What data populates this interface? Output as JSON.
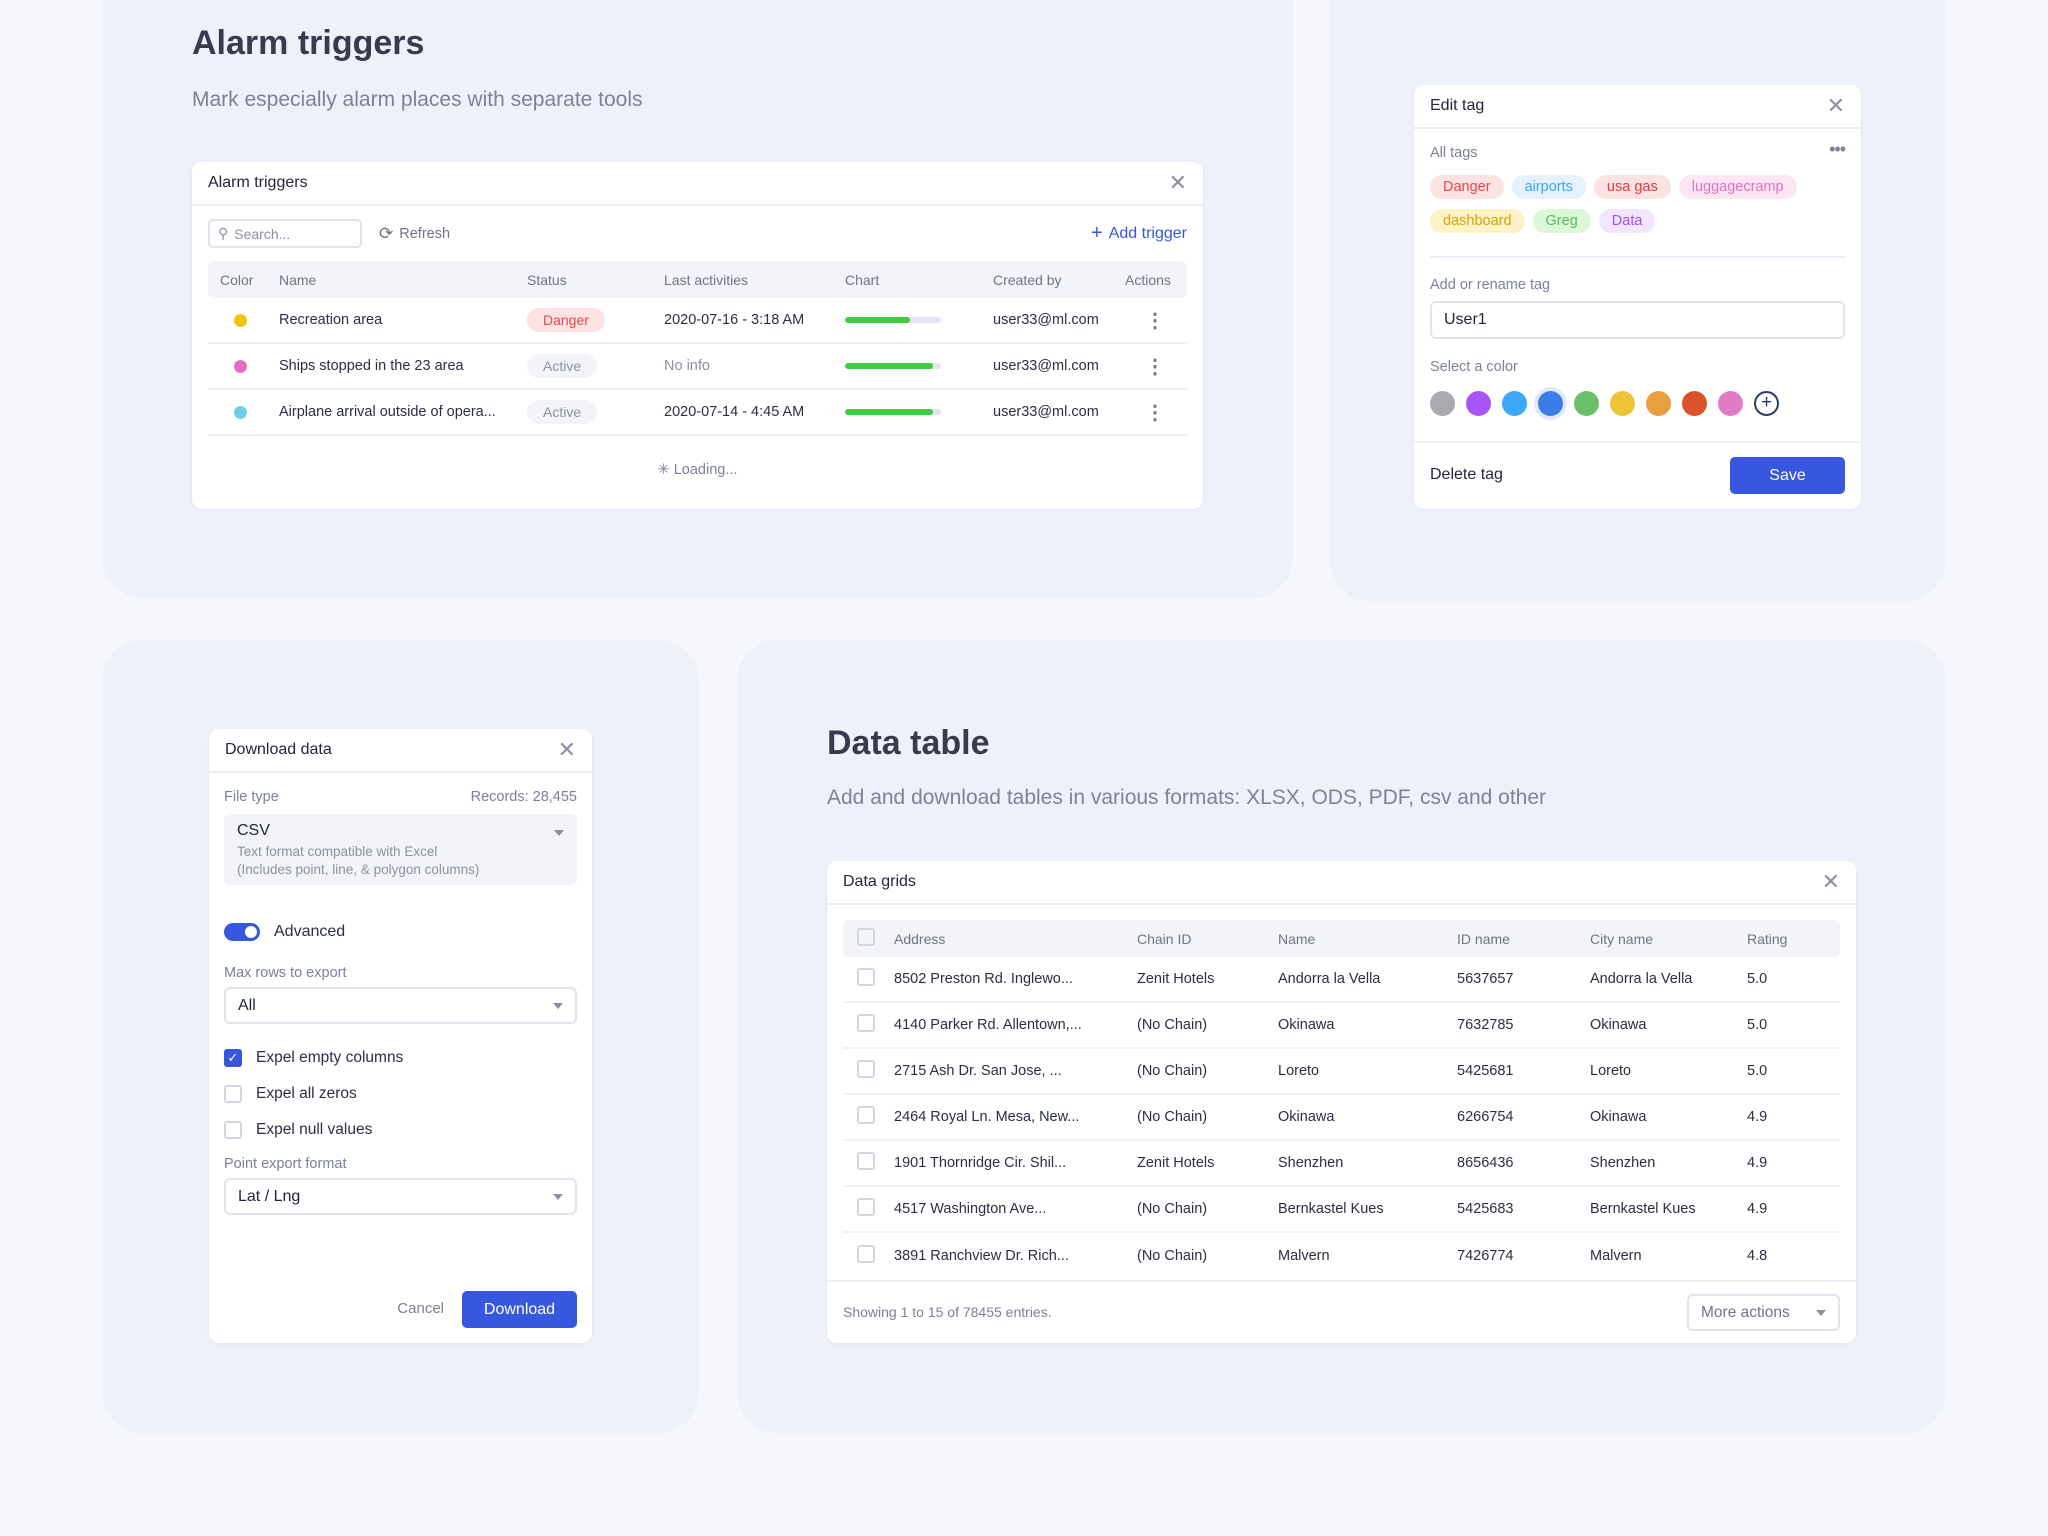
{
  "alarm_section": {
    "title": "Alarm triggers",
    "subtitle": "Mark especially alarm places with separate tools",
    "card": {
      "title": "Alarm triggers",
      "search_placeholder": "Search...",
      "refresh_label": "Refresh",
      "add_label": "Add trigger",
      "columns": [
        "Color",
        "Name",
        "Status",
        "Last activities",
        "Chart",
        "Created by",
        "Actions"
      ],
      "rows": [
        {
          "color": "#f2c40f",
          "name": "Recreation area",
          "status": "Danger",
          "last": "2020-07-16 - 3:18 AM",
          "progress": 0.68,
          "created_by": "user33@ml.com"
        },
        {
          "color": "#e26fc4",
          "name": "Ships stopped in the 23 area",
          "status": "Active",
          "last": "No info",
          "progress": 0.92,
          "created_by": "user33@ml.com"
        },
        {
          "color": "#6fcfe6",
          "name": "Airplane arrival outside of opera...",
          "status": "Active",
          "last": "2020-07-14 - 4:45 AM",
          "progress": 0.92,
          "created_by": "user33@ml.com"
        }
      ],
      "loading_label": "Loading..."
    }
  },
  "edit_tag": {
    "title": "Edit tag",
    "all_tags_label": "All tags",
    "tags": [
      {
        "label": "Danger",
        "bg": "#fde2e2",
        "fg": "#e5484d"
      },
      {
        "label": "airports",
        "bg": "#e3f2fd",
        "fg": "#3fa4f0"
      },
      {
        "label": "usa gas",
        "bg": "#fde2e2",
        "fg": "#e0393e"
      },
      {
        "label": "luggagecramp",
        "bg": "#fde6f4",
        "fg": "#e070c0"
      },
      {
        "label": "dashboard",
        "bg": "#fdf1c8",
        "fg": "#d4a600"
      },
      {
        "label": "Greg",
        "bg": "#dcf7d8",
        "fg": "#5cb85c"
      },
      {
        "label": "Data",
        "bg": "#f1e6fd",
        "fg": "#a64ff0"
      }
    ],
    "rename_label": "Add or rename tag",
    "rename_value": "User1",
    "color_label": "Select a color",
    "colors": [
      "#a8aab0",
      "#a855f7",
      "#3aa8f5",
      "#3b7ce6",
      "#6abf69",
      "#ecc436",
      "#e89f42",
      "#dc5228",
      "#e07bc5"
    ],
    "selected_color": "#3b7ce6",
    "delete_label": "Delete tag",
    "save_label": "Save"
  },
  "download": {
    "title": "Download data",
    "file_type_label": "File type",
    "records": "Records: 28,455",
    "file_type": "CSV",
    "file_desc_1": "Text format compatible with Excel",
    "file_desc_2": "(Includes point, line, & polygon columns)",
    "advanced_label": "Advanced",
    "advanced_on": true,
    "max_rows_label": "Max rows to export",
    "max_rows_value": "All",
    "options": [
      {
        "label": "Expel empty columns",
        "checked": true
      },
      {
        "label": "Expel all zeros",
        "checked": false
      },
      {
        "label": "Expel null values",
        "checked": false
      }
    ],
    "point_format_label": "Point export format",
    "point_format_value": "Lat / Lng",
    "cancel_label": "Cancel",
    "download_label": "Download"
  },
  "data_section": {
    "title": "Data table",
    "subtitle": "Add and download tables in various formats: XLSX, ODS, PDF, csv and other",
    "card": {
      "title": "Data grids",
      "columns": [
        "Address",
        "Chain ID",
        "Name",
        "ID name",
        "City name",
        "Rating"
      ],
      "rows": [
        [
          "8502 Preston Rd. Inglewo...",
          "Zenit Hotels",
          "Andorra la Vella",
          "5637657",
          "Andorra la Vella",
          "5.0"
        ],
        [
          "4140 Parker Rd. Allentown,...",
          "(No Chain)",
          "Okinawa",
          "7632785",
          "Okinawa",
          "5.0"
        ],
        [
          "2715 Ash Dr. San Jose, ...",
          "(No Chain)",
          "Loreto",
          "5425681",
          "Loreto",
          "5.0"
        ],
        [
          "2464 Royal Ln. Mesa, New...",
          "(No Chain)",
          "Okinawa",
          "6266754",
          "Okinawa",
          "4.9"
        ],
        [
          "1901 Thornridge Cir. Shil...",
          "Zenit Hotels",
          "Shenzhen",
          "8656436",
          "Shenzhen",
          "4.9"
        ],
        [
          "4517 Washington Ave...",
          "(No Chain)",
          "Bernkastel Kues",
          "5425683",
          "Bernkastel Kues",
          "4.9"
        ],
        [
          "3891 Ranchview Dr. Rich...",
          "(No Chain)",
          "Malvern",
          "7426774",
          "Malvern",
          "4.8"
        ]
      ],
      "footer_text": "Showing 1 to 15 of 78455 entries.",
      "more_actions_label": "More actions"
    }
  },
  "accent_color": "#3857df"
}
